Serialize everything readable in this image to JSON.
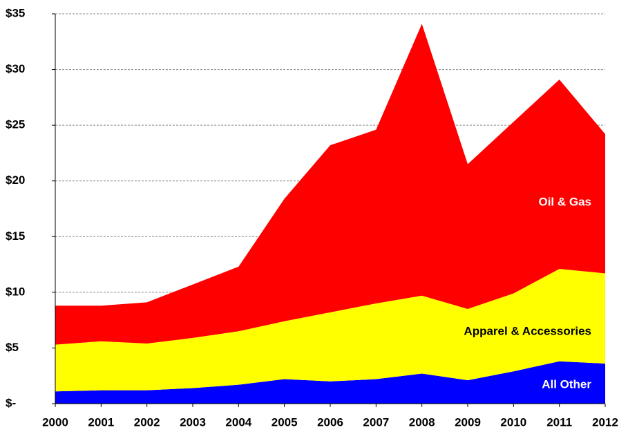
{
  "chart_data": {
    "type": "area",
    "x": [
      "2000",
      "2001",
      "2002",
      "2003",
      "2004",
      "2005",
      "2006",
      "2007",
      "2008",
      "2009",
      "2010",
      "2011",
      "2012"
    ],
    "series": [
      {
        "name": "All Other",
        "color": "#0000ff",
        "values": [
          1.1,
          1.2,
          1.2,
          1.4,
          1.7,
          2.2,
          2.0,
          2.2,
          2.7,
          2.1,
          2.9,
          3.8,
          3.6
        ]
      },
      {
        "name": "Apparel & Accessories",
        "color": "#ffff00",
        "values": [
          4.2,
          4.4,
          4.2,
          4.5,
          4.8,
          5.2,
          6.2,
          6.8,
          7.0,
          6.4,
          7.0,
          8.3,
          8.1
        ]
      },
      {
        "name": "Oil & Gas",
        "color": "#ff0000",
        "values": [
          3.5,
          3.2,
          3.7,
          4.8,
          5.8,
          11.0,
          15.0,
          15.6,
          24.4,
          13.0,
          15.4,
          17.0,
          12.5
        ]
      }
    ],
    "stacked": true,
    "ylim": [
      0,
      35
    ],
    "yticks": [
      {
        "value": 0,
        "label": "$-"
      },
      {
        "value": 5,
        "label": "$5"
      },
      {
        "value": 10,
        "label": "$10"
      },
      {
        "value": 15,
        "label": "$15"
      },
      {
        "value": 20,
        "label": "$20"
      },
      {
        "value": 25,
        "label": "$25"
      },
      {
        "value": 30,
        "label": "$30"
      },
      {
        "value": 35,
        "label": "$35"
      }
    ],
    "grid": true
  }
}
